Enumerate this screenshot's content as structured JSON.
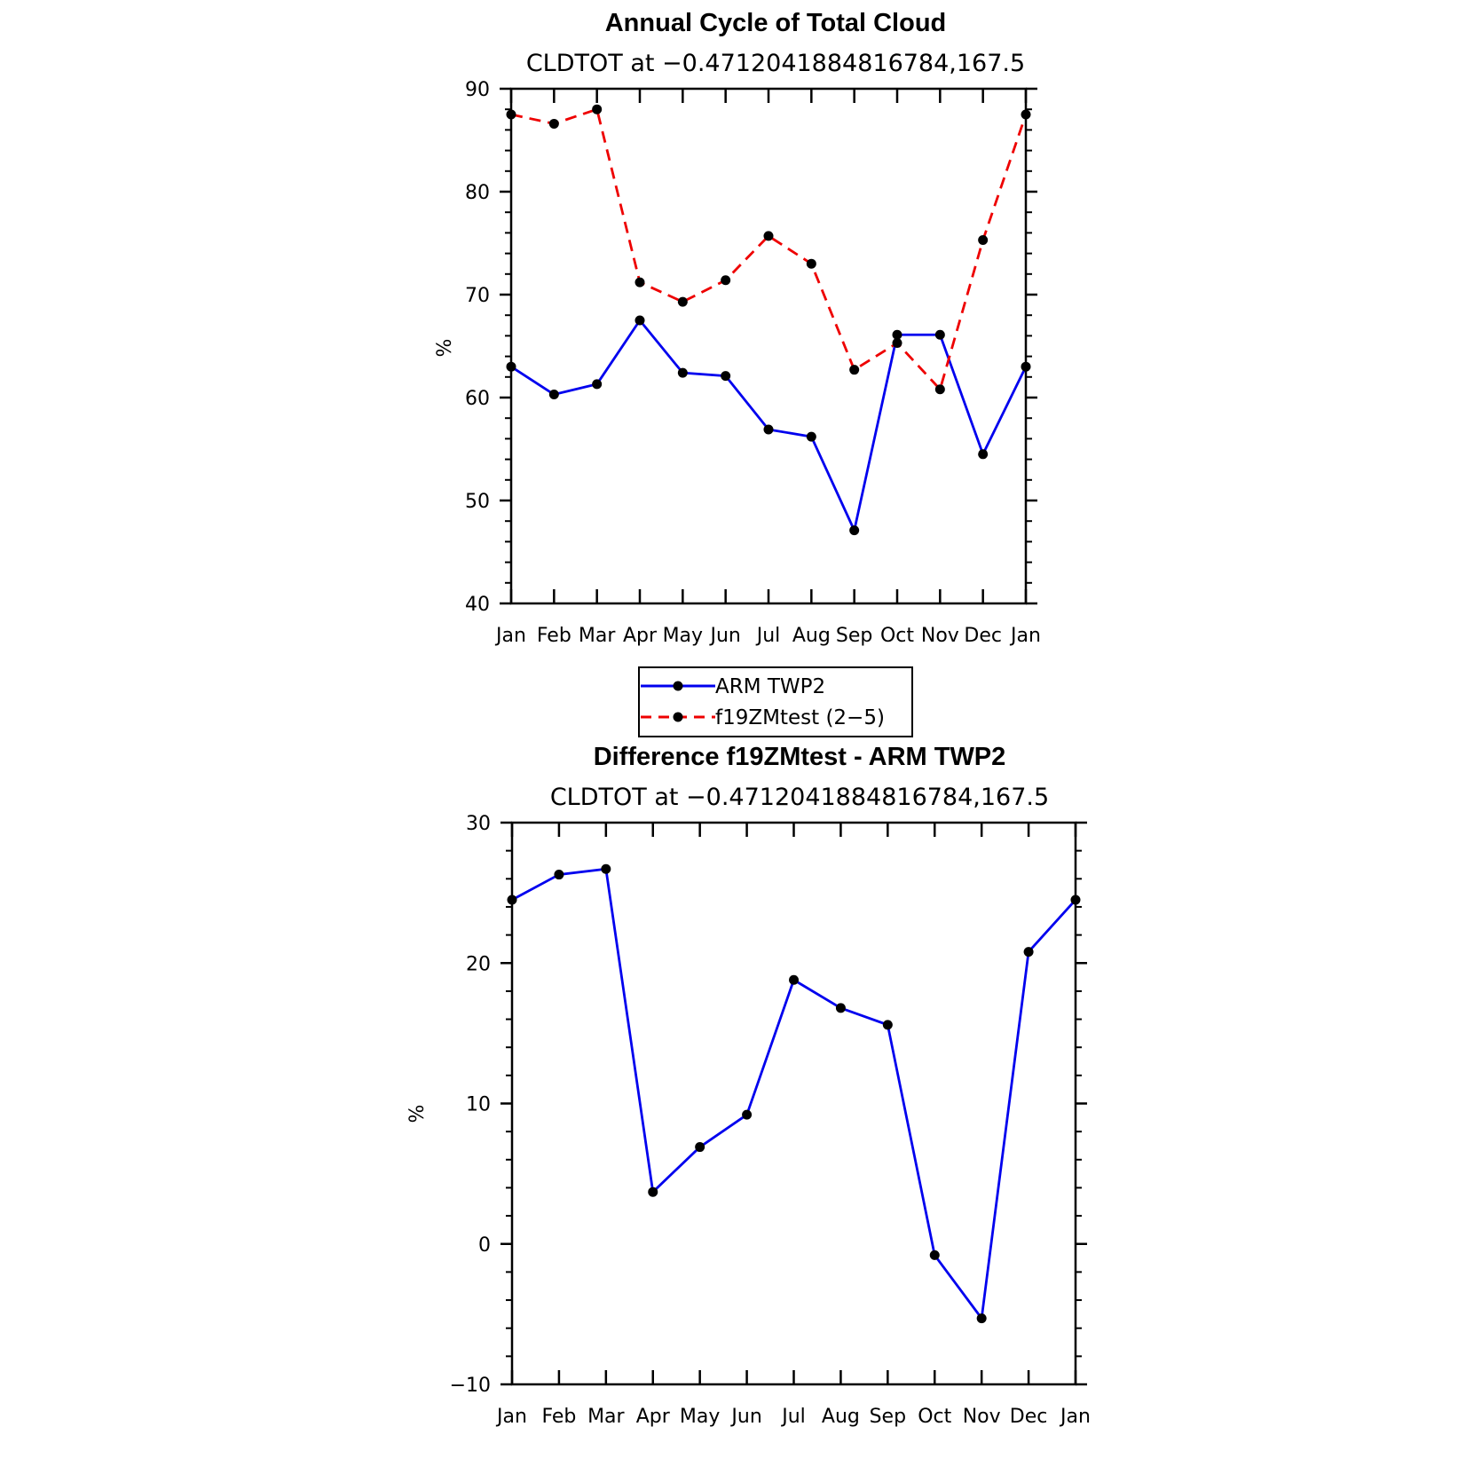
{
  "chart_data": [
    {
      "type": "line",
      "title": "Annual Cycle of Total Cloud",
      "subtitle": "CLDTOT at −0.4712041884816784,167.5",
      "ylabel": "%",
      "xlabel": "",
      "ylim": [
        40,
        90
      ],
      "yticks": [
        "40",
        "50",
        "60",
        "70",
        "80",
        "90"
      ],
      "yticks_values": [
        40,
        50,
        60,
        70,
        80,
        90
      ],
      "categories": [
        "Jan",
        "Feb",
        "Mar",
        "Apr",
        "May",
        "Jun",
        "Jul",
        "Aug",
        "Sep",
        "Oct",
        "Nov",
        "Dec",
        "Jan"
      ],
      "grid": false,
      "legend_position": "bottom",
      "series": [
        {
          "name": "ARM TWP2",
          "color": "#0000ee",
          "style": "solid",
          "values": [
            63.0,
            60.3,
            61.3,
            67.5,
            62.4,
            62.1,
            56.9,
            56.2,
            47.1,
            66.1,
            66.1,
            54.5,
            63.0
          ]
        },
        {
          "name": "f19ZMtest (2−5)",
          "color": "#ee0000",
          "style": "dashed",
          "values": [
            87.5,
            86.6,
            88.0,
            71.2,
            69.3,
            71.4,
            75.7,
            73.0,
            62.7,
            65.3,
            60.8,
            75.3,
            87.5
          ]
        }
      ]
    },
    {
      "type": "line",
      "title": "Difference f19ZMtest - ARM TWP2",
      "subtitle": "CLDTOT at −0.4712041884816784,167.5",
      "ylabel": "%",
      "xlabel": "",
      "ylim": [
        -10,
        30
      ],
      "yticks": [
        "−10",
        "0",
        "10",
        "20",
        "30"
      ],
      "yticks_values": [
        -10,
        0,
        10,
        20,
        30
      ],
      "categories": [
        "Jan",
        "Feb",
        "Mar",
        "Apr",
        "May",
        "Jun",
        "Jul",
        "Aug",
        "Sep",
        "Oct",
        "Nov",
        "Dec",
        "Jan"
      ],
      "grid": false,
      "series": [
        {
          "color": "#0000ee",
          "style": "solid",
          "values": [
            24.5,
            26.3,
            26.7,
            3.7,
            6.9,
            9.2,
            18.8,
            16.8,
            15.6,
            -0.8,
            -5.3,
            20.8,
            24.5
          ]
        }
      ]
    }
  ]
}
